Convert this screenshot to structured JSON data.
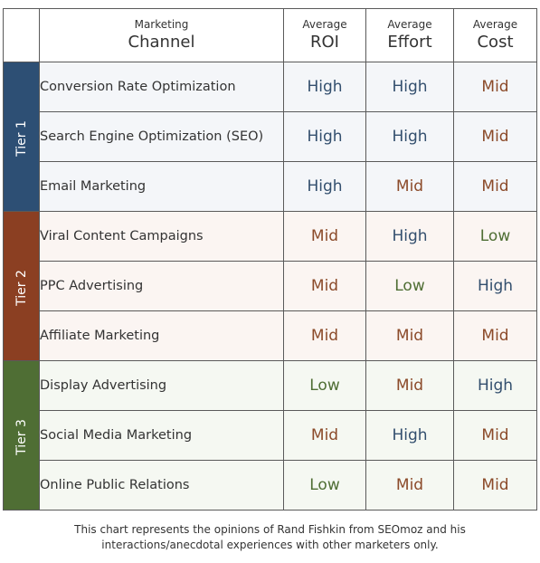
{
  "chart_data": {
    "type": "table",
    "header": {
      "channel_small": "Marketing",
      "channel_big": "Channel",
      "columns": [
        {
          "small": "Average",
          "big": "ROI"
        },
        {
          "small": "Average",
          "big": "Effort"
        },
        {
          "small": "Average",
          "big": "Cost"
        }
      ]
    },
    "tiers": [
      {
        "label": "Tier 1",
        "color": "#2d4f74",
        "row_bg": "#f4f6f9",
        "rows": [
          {
            "channel": "Conversion Rate Optimization",
            "values": [
              "High",
              "High",
              "Mid"
            ]
          },
          {
            "channel": "Search Engine Optimization (SEO)",
            "values": [
              "High",
              "High",
              "Mid"
            ]
          },
          {
            "channel": "Email Marketing",
            "values": [
              "High",
              "Mid",
              "Mid"
            ]
          }
        ]
      },
      {
        "label": "Tier 2",
        "color": "#8b3f22",
        "row_bg": "#fbf5f2",
        "rows": [
          {
            "channel": "Viral Content Campaigns",
            "values": [
              "Mid",
              "High",
              "Low"
            ]
          },
          {
            "channel": "PPC Advertising",
            "values": [
              "Mid",
              "Low",
              "High"
            ]
          },
          {
            "channel": "Affiliate Marketing",
            "values": [
              "Mid",
              "Mid",
              "Mid"
            ]
          }
        ]
      },
      {
        "label": "Tier 3",
        "color": "#4f6e34",
        "row_bg": "#f5f8f2",
        "rows": [
          {
            "channel": "Display Advertising",
            "values": [
              "Low",
              "Mid",
              "High"
            ]
          },
          {
            "channel": "Social Media Marketing",
            "values": [
              "Mid",
              "High",
              "Mid"
            ]
          },
          {
            "channel": "Online Public Relations",
            "values": [
              "Low",
              "Mid",
              "Mid"
            ]
          }
        ]
      }
    ],
    "level_colors": {
      "High": "#334f6e",
      "Mid": "#8b4a29",
      "Low": "#4f6e34"
    }
  },
  "footnote": {
    "line1": "This chart represents the opinions of Rand Fishkin from SEOmoz and his",
    "line2": "interactions/anecdotal experiences with other marketers only."
  }
}
